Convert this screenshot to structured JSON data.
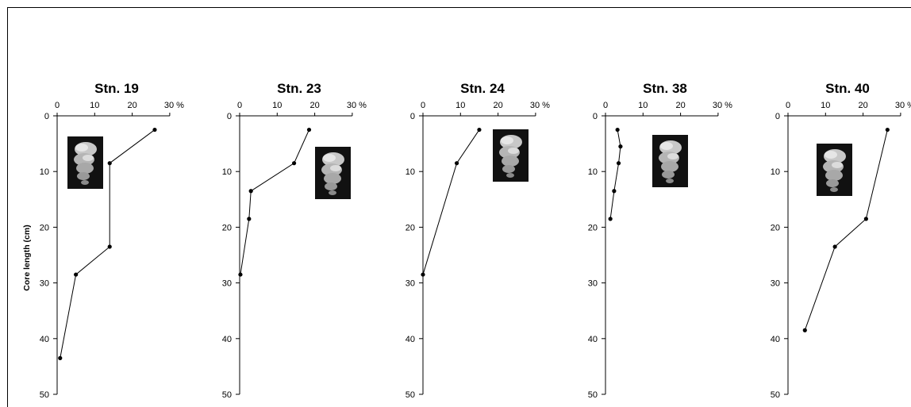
{
  "figure": {
    "ylabel": "Core length (cm)"
  },
  "chart_data": [
    {
      "type": "line",
      "title": "Stn. 19",
      "xlim": [
        0,
        30
      ],
      "ylim": [
        0,
        50
      ],
      "x_ticks": [
        "0",
        "10",
        "20",
        "30 %"
      ],
      "y_ticks": [
        "0",
        "10",
        "20",
        "30",
        "40",
        "50"
      ],
      "y_inverted": true,
      "ylabel": "Core length (cm)",
      "series": [
        {
          "x": [
            26,
            14,
            14,
            5,
            0.8
          ],
          "y": [
            2.5,
            8.5,
            23.5,
            28.5,
            43.5
          ]
        }
      ],
      "inset_icon": "foraminifera-photo"
    },
    {
      "type": "line",
      "title": "Stn. 23",
      "xlim": [
        0,
        30
      ],
      "ylim": [
        0,
        50
      ],
      "x_ticks": [
        "0",
        "10",
        "20",
        "30 %"
      ],
      "y_ticks": [
        "0",
        "10",
        "20",
        "30",
        "40",
        "50"
      ],
      "y_inverted": true,
      "series": [
        {
          "x": [
            18.5,
            14.5,
            3,
            2.5,
            0.2
          ],
          "y": [
            2.5,
            8.5,
            13.5,
            18.5,
            28.5
          ]
        }
      ],
      "inset_icon": "foraminifera-photo"
    },
    {
      "type": "line",
      "title": "Stn. 24",
      "xlim": [
        0,
        30
      ],
      "ylim": [
        0,
        50
      ],
      "x_ticks": [
        "0",
        "10",
        "20",
        "30 %"
      ],
      "y_ticks": [
        "0",
        "10",
        "20",
        "30",
        "40",
        "50"
      ],
      "y_inverted": true,
      "series": [
        {
          "x": [
            15,
            9,
            0
          ],
          "y": [
            2.5,
            8.5,
            28.5
          ]
        }
      ],
      "inset_icon": "foraminifera-photo"
    },
    {
      "type": "line",
      "title": "Stn. 38",
      "xlim": [
        0,
        30
      ],
      "ylim": [
        0,
        50
      ],
      "x_ticks": [
        "0",
        "10",
        "20",
        "30 %"
      ],
      "y_ticks": [
        "0",
        "10",
        "20",
        "30",
        "40",
        "50"
      ],
      "y_inverted": true,
      "series": [
        {
          "x": [
            3.2,
            4,
            3.5,
            2.3,
            1.3
          ],
          "y": [
            2.5,
            5.5,
            8.5,
            13.5,
            18.5
          ]
        }
      ],
      "inset_icon": "foraminifera-photo"
    },
    {
      "type": "line",
      "title": "Stn. 40",
      "xlim": [
        0,
        30
      ],
      "ylim": [
        0,
        50
      ],
      "x_ticks": [
        "0",
        "10",
        "20",
        "30 %"
      ],
      "y_ticks": [
        "0",
        "10",
        "20",
        "30",
        "40",
        "50"
      ],
      "y_inverted": true,
      "series": [
        {
          "x": [
            26.5,
            20.8,
            12.5,
            4.5
          ],
          "y": [
            2.5,
            18.5,
            23.5,
            38.5
          ]
        }
      ],
      "inset_icon": "foraminifera-photo"
    }
  ]
}
